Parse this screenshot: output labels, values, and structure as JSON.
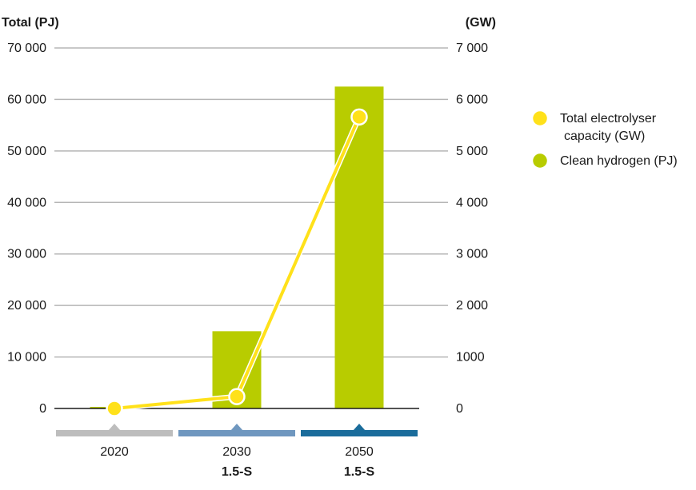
{
  "chart_data": {
    "type": "bar+line",
    "categories": [
      "2020",
      "2030",
      "2050"
    ],
    "category_sublabels": [
      "",
      "1.5-S",
      "1.5-S"
    ],
    "category_band_colors": [
      "#bdbdbd",
      "#6f97bf",
      "#1a6c9b"
    ],
    "y_left": {
      "label": "Total (PJ)",
      "range": [
        0,
        70000
      ],
      "ticks": [
        0,
        10000,
        20000,
        30000,
        40000,
        50000,
        60000,
        70000
      ],
      "tick_labels": [
        "0",
        "10 000",
        "20 000",
        "30 000",
        "40 000",
        "50 000",
        "60 000",
        "70 000"
      ]
    },
    "y_right": {
      "label": "(GW)",
      "range": [
        0,
        7000
      ],
      "ticks": [
        0,
        1000,
        2000,
        3000,
        4000,
        5000,
        6000,
        7000
      ],
      "tick_labels": [
        "0",
        "1000",
        "2 000",
        "3 000",
        "4 000",
        "5 000",
        "6 000",
        "7 000"
      ]
    },
    "series": [
      {
        "name": "Clean hydrogen (PJ)",
        "kind": "bar",
        "axis": "left",
        "color": "#b8cc00",
        "values": [
          300,
          15000,
          62500
        ]
      },
      {
        "name": "Total electrolyser capacity (GW)",
        "kind": "line",
        "axis": "right",
        "color": "#ffe11a",
        "values": [
          0,
          230,
          5660
        ]
      }
    ],
    "legend": {
      "placement": "right",
      "items": [
        {
          "lines": [
            "Total electrolyser",
            "capacity (GW)"
          ],
          "marker": "circle",
          "color": "#ffe11a"
        },
        {
          "lines": [
            "Clean hydrogen (PJ)"
          ],
          "marker": "circle",
          "color": "#b8cc00"
        }
      ]
    },
    "grid": true
  }
}
